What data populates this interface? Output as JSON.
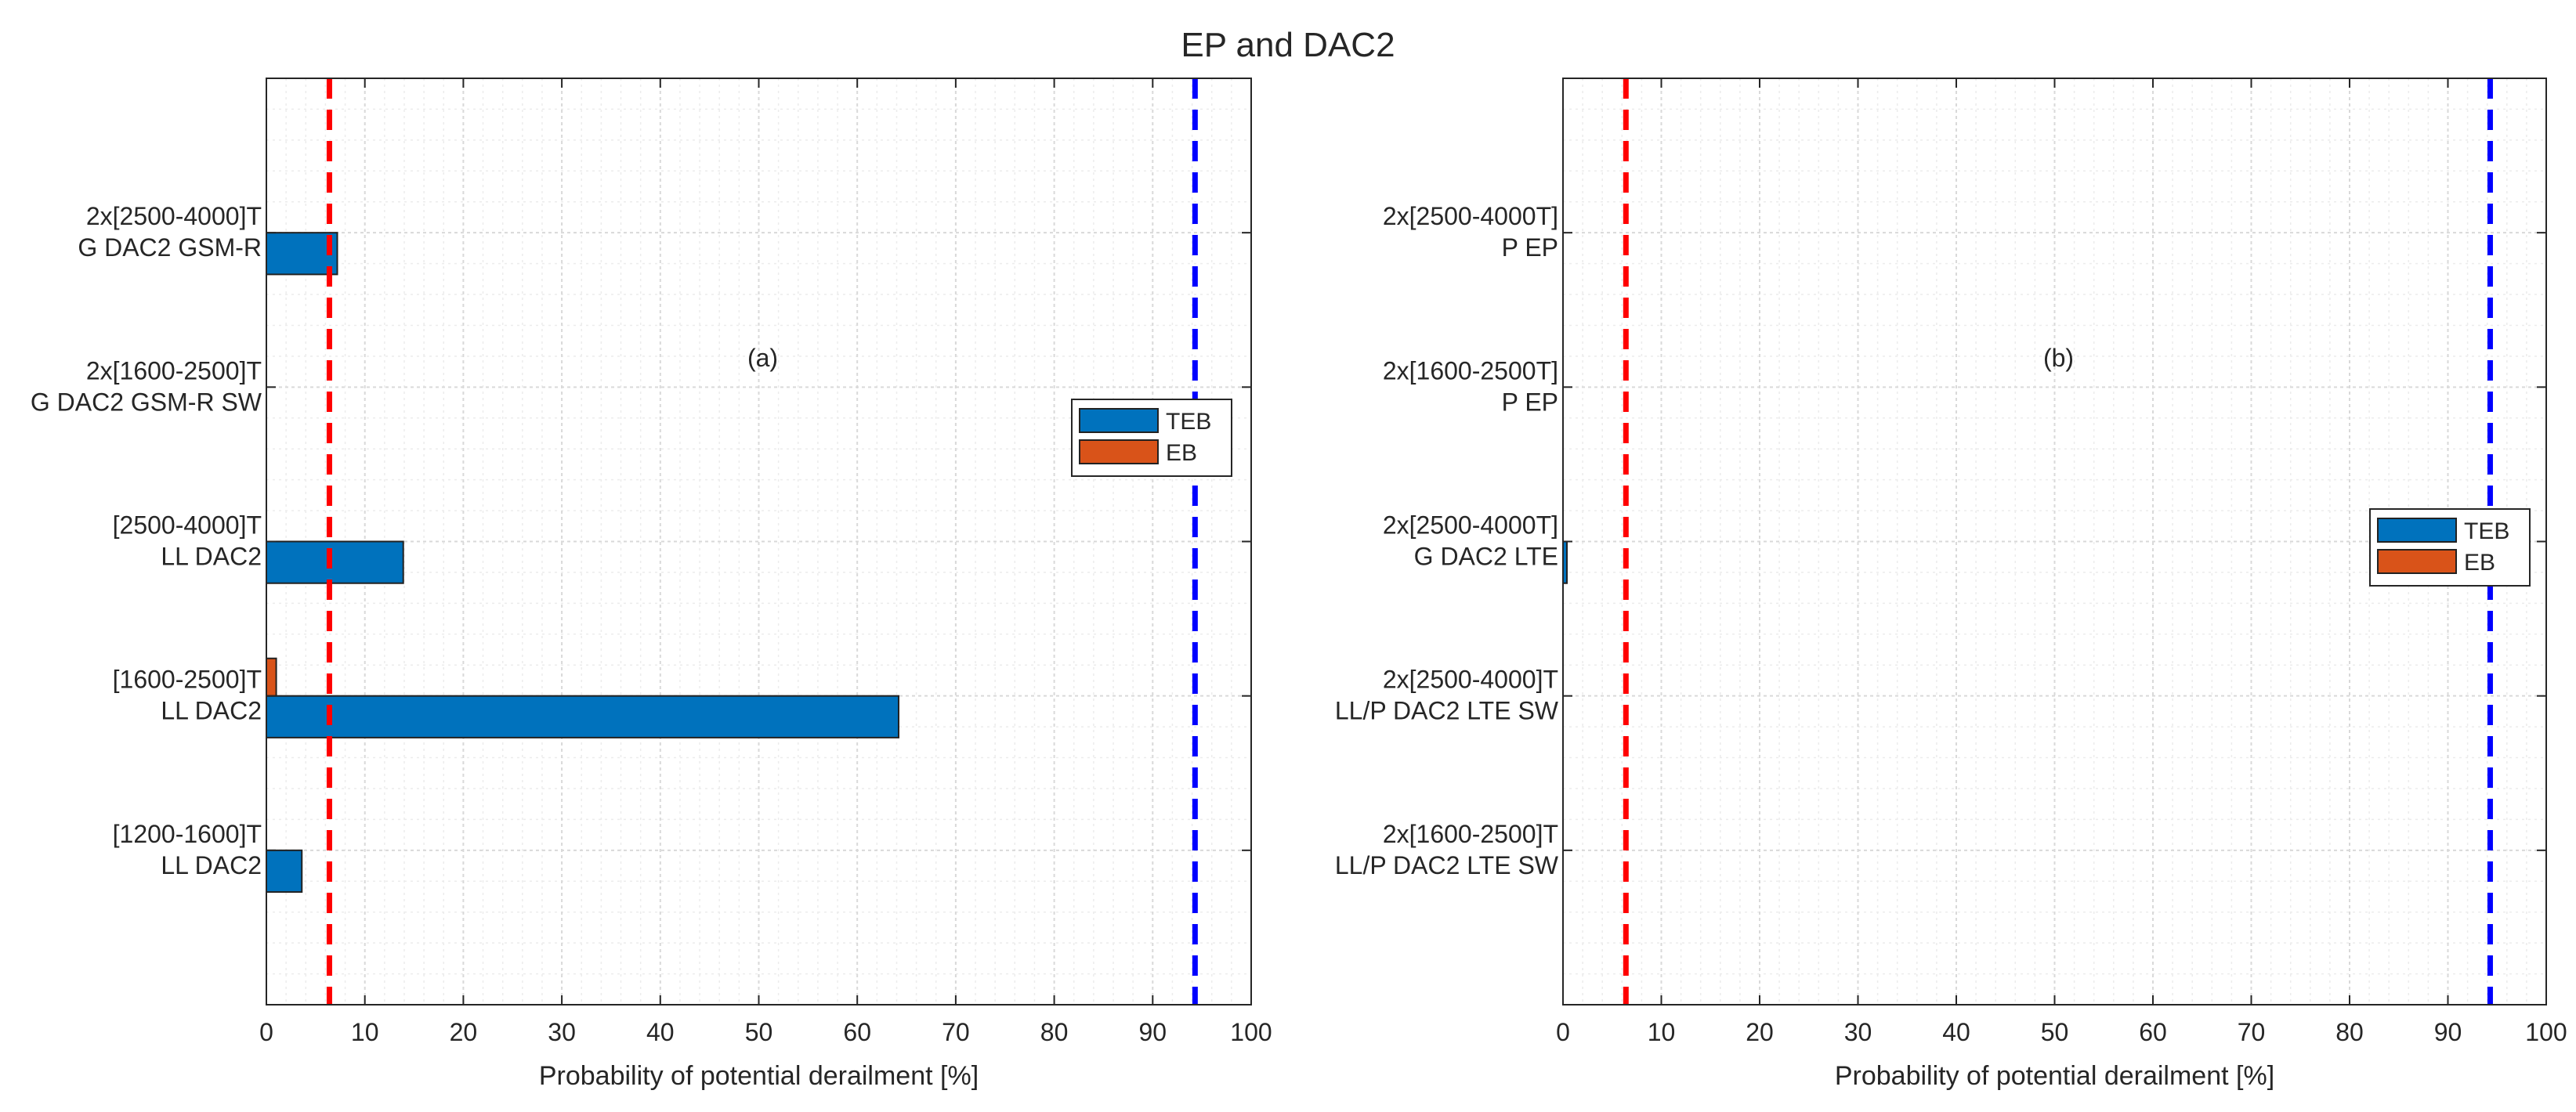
{
  "figure": {
    "title": "EP and DAC2"
  },
  "colors": {
    "teb": "#0072BD",
    "eb": "#D95319",
    "threshold_low": "#FF0000",
    "threshold_high": "#0000FF",
    "grid": "#d9d9d9",
    "axis": "#262626"
  },
  "chart_data": [
    {
      "type": "bar",
      "orientation": "horizontal",
      "panel_label": "(a)",
      "xlabel": "Probability of potential derailment [%]",
      "xlim": [
        0,
        100
      ],
      "xticks": [
        0,
        10,
        20,
        30,
        40,
        50,
        60,
        70,
        80,
        90,
        100
      ],
      "grid": true,
      "legend": {
        "entries": [
          "TEB",
          "EB"
        ],
        "placement": "right"
      },
      "categories": [
        [
          "2x[2500-4000]T",
          "G DAC2 GSM-R"
        ],
        [
          "2x[1600-2500]T",
          "G DAC2 GSM-R SW"
        ],
        [
          "[2500-4000]T",
          "LL DAC2"
        ],
        [
          "[1600-2500]T",
          "LL DAC2"
        ],
        [
          "[1200-1600]T",
          "LL DAC2"
        ]
      ],
      "series": [
        {
          "name": "TEB",
          "values": [
            7.2,
            0,
            13.9,
            64.2,
            3.6
          ]
        },
        {
          "name": "EB",
          "values": [
            0,
            0,
            0,
            1.0,
            0
          ]
        }
      ],
      "threshold_lines": [
        {
          "value": 6.4,
          "color": "red",
          "style": "dashed"
        },
        {
          "value": 94.3,
          "color": "blue",
          "style": "dashed"
        }
      ]
    },
    {
      "type": "bar",
      "orientation": "horizontal",
      "panel_label": "(b)",
      "xlabel": "Probability of potential derailment [%]",
      "xlim": [
        0,
        100
      ],
      "xticks": [
        0,
        10,
        20,
        30,
        40,
        50,
        60,
        70,
        80,
        90,
        100
      ],
      "grid": true,
      "legend": {
        "entries": [
          "TEB",
          "EB"
        ],
        "placement": "right"
      },
      "categories": [
        [
          "2x[2500-4000T]",
          "P EP"
        ],
        [
          "2x[1600-2500T]",
          "P EP"
        ],
        [
          "2x[2500-4000T]",
          "G DAC2 LTE"
        ],
        [
          "2x[2500-4000]T",
          "LL/P DAC2 LTE SW"
        ],
        [
          "2x[1600-2500]T",
          "LL/P DAC2 LTE SW"
        ]
      ],
      "series": [
        {
          "name": "TEB",
          "values": [
            0,
            0,
            0.4,
            0,
            0
          ]
        },
        {
          "name": "EB",
          "values": [
            0,
            0,
            0,
            0,
            0
          ]
        }
      ],
      "threshold_lines": [
        {
          "value": 6.4,
          "color": "red",
          "style": "dashed"
        },
        {
          "value": 94.3,
          "color": "blue",
          "style": "dashed"
        }
      ]
    }
  ]
}
